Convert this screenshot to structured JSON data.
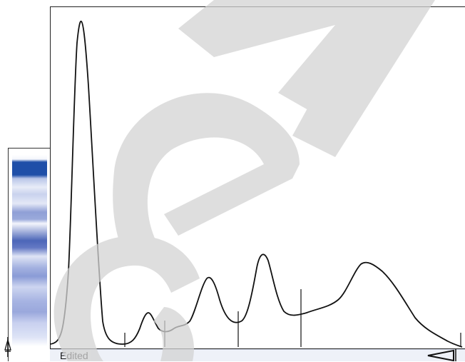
{
  "status": {
    "label": "Edited"
  },
  "colors": {
    "trace": "#111111",
    "gel_band": "#1f4fa8",
    "watermark": "#d9d9d9",
    "status_bg": "#eef1f8"
  },
  "icons": {
    "origin_marker": "arrow-marker-icon",
    "end_marker": "triangle-marker-icon"
  },
  "segment_dividers": 5
}
